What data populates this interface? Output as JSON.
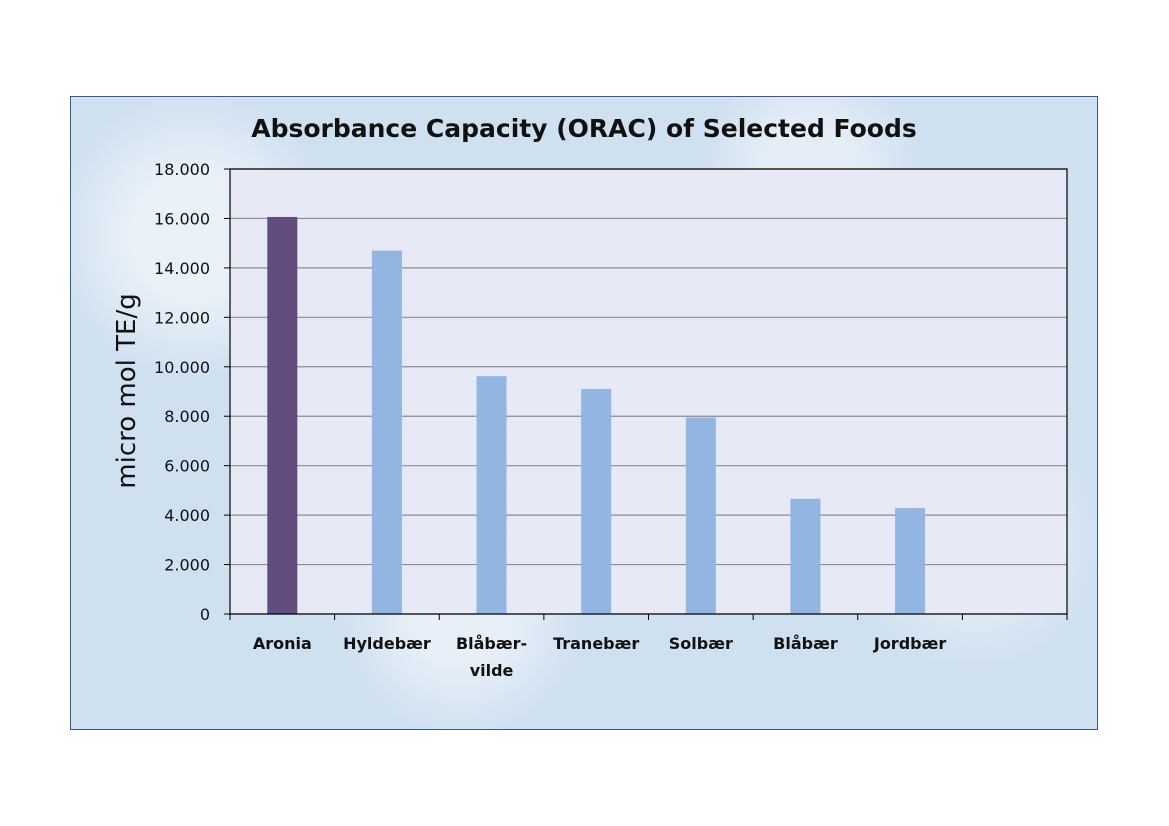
{
  "chart_data": {
    "type": "bar",
    "title": "Absorbance Capacity (ORAC) of Selected Foods",
    "ylabel": "micro mol TE/g",
    "xlabel": "",
    "ylim": [
      0,
      18000
    ],
    "yticks": [
      0,
      2000,
      4000,
      6000,
      8000,
      10000,
      12000,
      14000,
      16000,
      18000
    ],
    "ytick_labels": [
      "0",
      "2.000",
      "4.000",
      "6.000",
      "8.000",
      "10.000",
      "12.000",
      "14.000",
      "16.000",
      "18.000"
    ],
    "categories": [
      [
        "Aronia"
      ],
      [
        "Hyldebær"
      ],
      [
        "Blåbær-",
        "vilde"
      ],
      [
        "Tranebær"
      ],
      [
        "Solbær"
      ],
      [
        "Blåbær"
      ],
      [
        "Jordbær"
      ],
      [
        ""
      ]
    ],
    "values": [
      16060,
      14700,
      9620,
      9100,
      7950,
      4660,
      4290,
      null
    ],
    "bar_colors": [
      "#614c7d",
      "#92b5e2",
      "#92b5e2",
      "#92b5e2",
      "#92b5e2",
      "#92b5e2",
      "#92b5e2",
      "#92b5e2"
    ],
    "grid": true,
    "legend": "none",
    "colors": {
      "plot_background": "#e8e9f7",
      "frame_background": "#cfe0f1",
      "gridline": "#8c8c8c",
      "axis": "#000000"
    }
  }
}
